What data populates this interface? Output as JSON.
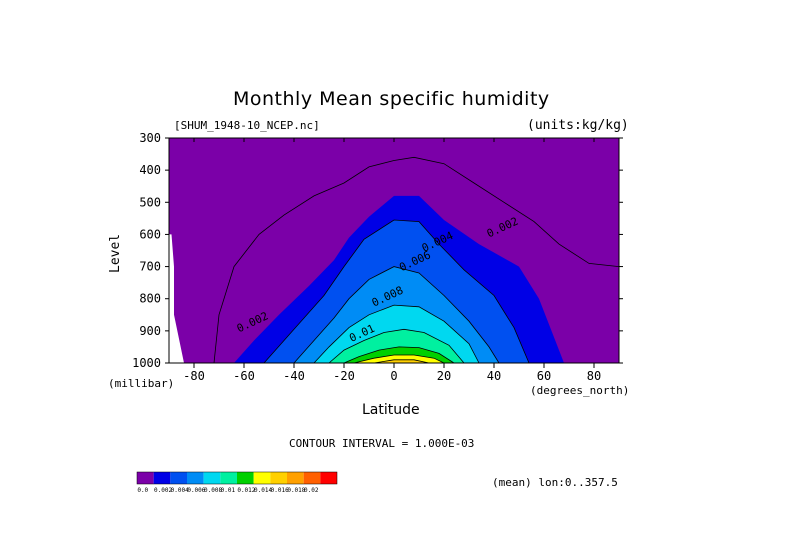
{
  "title": "Monthly Mean specific humidity",
  "dataset_label": "[SHUM_1948-10_NCEP.nc]",
  "units_label": "(units:kg/kg)",
  "y_axis_label": "Level",
  "y_units_label": "(millibar)",
  "x_axis_label": "Latitude",
  "x_units_label": "(degrees_north)",
  "contour_interval_text": "CONTOUR INTERVAL = 1.000E-03",
  "mean_text": "(mean) lon:0..357.5",
  "chart_data": {
    "type": "heatmap",
    "title": "Monthly Mean specific humidity",
    "xlabel": "Latitude",
    "ylabel": "Level",
    "xlim": [
      -90,
      90
    ],
    "ylim": [
      1000,
      300
    ],
    "x_ticks": [
      "-80",
      "-60",
      "-40",
      "-20",
      "0",
      "20",
      "40",
      "60",
      "80"
    ],
    "x_tick_values": [
      -80,
      -60,
      -40,
      -20,
      0,
      20,
      40,
      60,
      80
    ],
    "y_ticks": [
      "300",
      "400",
      "500",
      "600",
      "700",
      "800",
      "900",
      "1000"
    ],
    "y_tick_values": [
      300,
      400,
      500,
      600,
      700,
      800,
      900,
      1000
    ],
    "contour_labels": [
      {
        "text": "0.002",
        "lat": 38,
        "level": 610
      },
      {
        "text": "0.004",
        "lat": 12,
        "level": 655
      },
      {
        "text": "0.006",
        "lat": 3,
        "level": 715
      },
      {
        "text": "0.008",
        "lat": -8,
        "level": 825
      },
      {
        "text": "0.01",
        "lat": -17,
        "level": 935
      },
      {
        "text": "0.002",
        "lat": -62,
        "level": 905
      }
    ],
    "boundaries": [
      {
        "value": 0.0,
        "points": [
          [
            -88,
            850
          ],
          [
            -88,
            700
          ],
          [
            -89,
            600
          ],
          [
            -90,
            600
          ],
          [
            -90,
            1000
          ],
          [
            -84,
            1000
          ]
        ]
      },
      {
        "value": 0.002,
        "points": [
          [
            -64,
            1000
          ],
          [
            -56,
            930
          ],
          [
            -46,
            850
          ],
          [
            -34,
            760
          ],
          [
            -24,
            680
          ],
          [
            -18,
            610
          ],
          [
            -10,
            545
          ],
          [
            0,
            480
          ],
          [
            10,
            480
          ],
          [
            20,
            555
          ],
          [
            34,
            630
          ],
          [
            50,
            700
          ],
          [
            58,
            800
          ],
          [
            64,
            920
          ],
          [
            68,
            1000
          ]
        ]
      },
      {
        "value": 0.004,
        "points": [
          [
            -52,
            1000
          ],
          [
            -44,
            930
          ],
          [
            -36,
            860
          ],
          [
            -28,
            790
          ],
          [
            -20,
            700
          ],
          [
            -12,
            615
          ],
          [
            0,
            555
          ],
          [
            10,
            560
          ],
          [
            18,
            630
          ],
          [
            28,
            710
          ],
          [
            40,
            790
          ],
          [
            48,
            890
          ],
          [
            54,
            1000
          ]
        ]
      },
      {
        "value": 0.006,
        "points": [
          [
            -40,
            1000
          ],
          [
            -32,
            930
          ],
          [
            -24,
            860
          ],
          [
            -18,
            800
          ],
          [
            -10,
            740
          ],
          [
            0,
            700
          ],
          [
            10,
            720
          ],
          [
            20,
            790
          ],
          [
            30,
            870
          ],
          [
            38,
            950
          ],
          [
            42,
            1000
          ]
        ]
      },
      {
        "value": 0.008,
        "points": [
          [
            -32,
            1000
          ],
          [
            -26,
            950
          ],
          [
            -18,
            890
          ],
          [
            -10,
            850
          ],
          [
            0,
            820
          ],
          [
            10,
            825
          ],
          [
            20,
            870
          ],
          [
            30,
            940
          ],
          [
            34,
            1000
          ]
        ]
      },
      {
        "value": 0.01,
        "points": [
          [
            -26,
            1000
          ],
          [
            -20,
            960
          ],
          [
            -12,
            930
          ],
          [
            -4,
            905
          ],
          [
            4,
            895
          ],
          [
            12,
            905
          ],
          [
            22,
            945
          ],
          [
            28,
            1000
          ]
        ]
      },
      {
        "value": 0.012,
        "points": [
          [
            -20,
            1000
          ],
          [
            -14,
            980
          ],
          [
            -6,
            960
          ],
          [
            2,
            950
          ],
          [
            10,
            952
          ],
          [
            18,
            970
          ],
          [
            24,
            1000
          ]
        ]
      },
      {
        "value": 0.014,
        "points": [
          [
            -16,
            1000
          ],
          [
            -8,
            985
          ],
          [
            0,
            975
          ],
          [
            8,
            975
          ],
          [
            16,
            985
          ],
          [
            20,
            1000
          ]
        ]
      },
      {
        "value": 0.016,
        "points": [
          [
            -8,
            1000
          ],
          [
            0,
            990
          ],
          [
            8,
            990
          ],
          [
            14,
            1000
          ]
        ]
      }
    ],
    "outer_contour": {
      "value": 0.001,
      "points": [
        [
          -72,
          1000
        ],
        [
          -70,
          850
        ],
        [
          -64,
          700
        ],
        [
          -54,
          600
        ],
        [
          -44,
          540
        ],
        [
          -32,
          480
        ],
        [
          -20,
          440
        ],
        [
          -10,
          390
        ],
        [
          0,
          370
        ],
        [
          8,
          360
        ],
        [
          20,
          380
        ],
        [
          32,
          440
        ],
        [
          44,
          500
        ],
        [
          56,
          560
        ],
        [
          66,
          630
        ],
        [
          78,
          690
        ],
        [
          90,
          700
        ]
      ]
    },
    "colorbar": {
      "colors": [
        "#7b00a8",
        "#0000e6",
        "#0050f0",
        "#008cf5",
        "#00d8f0",
        "#00f0a0",
        "#00d000",
        "#ffff00",
        "#ffd000",
        "#ffa000",
        "#ff6000",
        "#ff0000"
      ],
      "labels": [
        "0.0",
        "0.002",
        "0.004",
        "0.006",
        "0.008",
        "0.01",
        "0.012",
        "0.014",
        "0.016",
        "0.018",
        "0.02"
      ]
    },
    "fill_colors": [
      "#7b00a8",
      "#0000e6",
      "#0050f0",
      "#008cf5",
      "#00d8f0",
      "#00f0a0",
      "#00d000",
      "#ffff00",
      "#ffd000",
      "#ffa000"
    ]
  }
}
